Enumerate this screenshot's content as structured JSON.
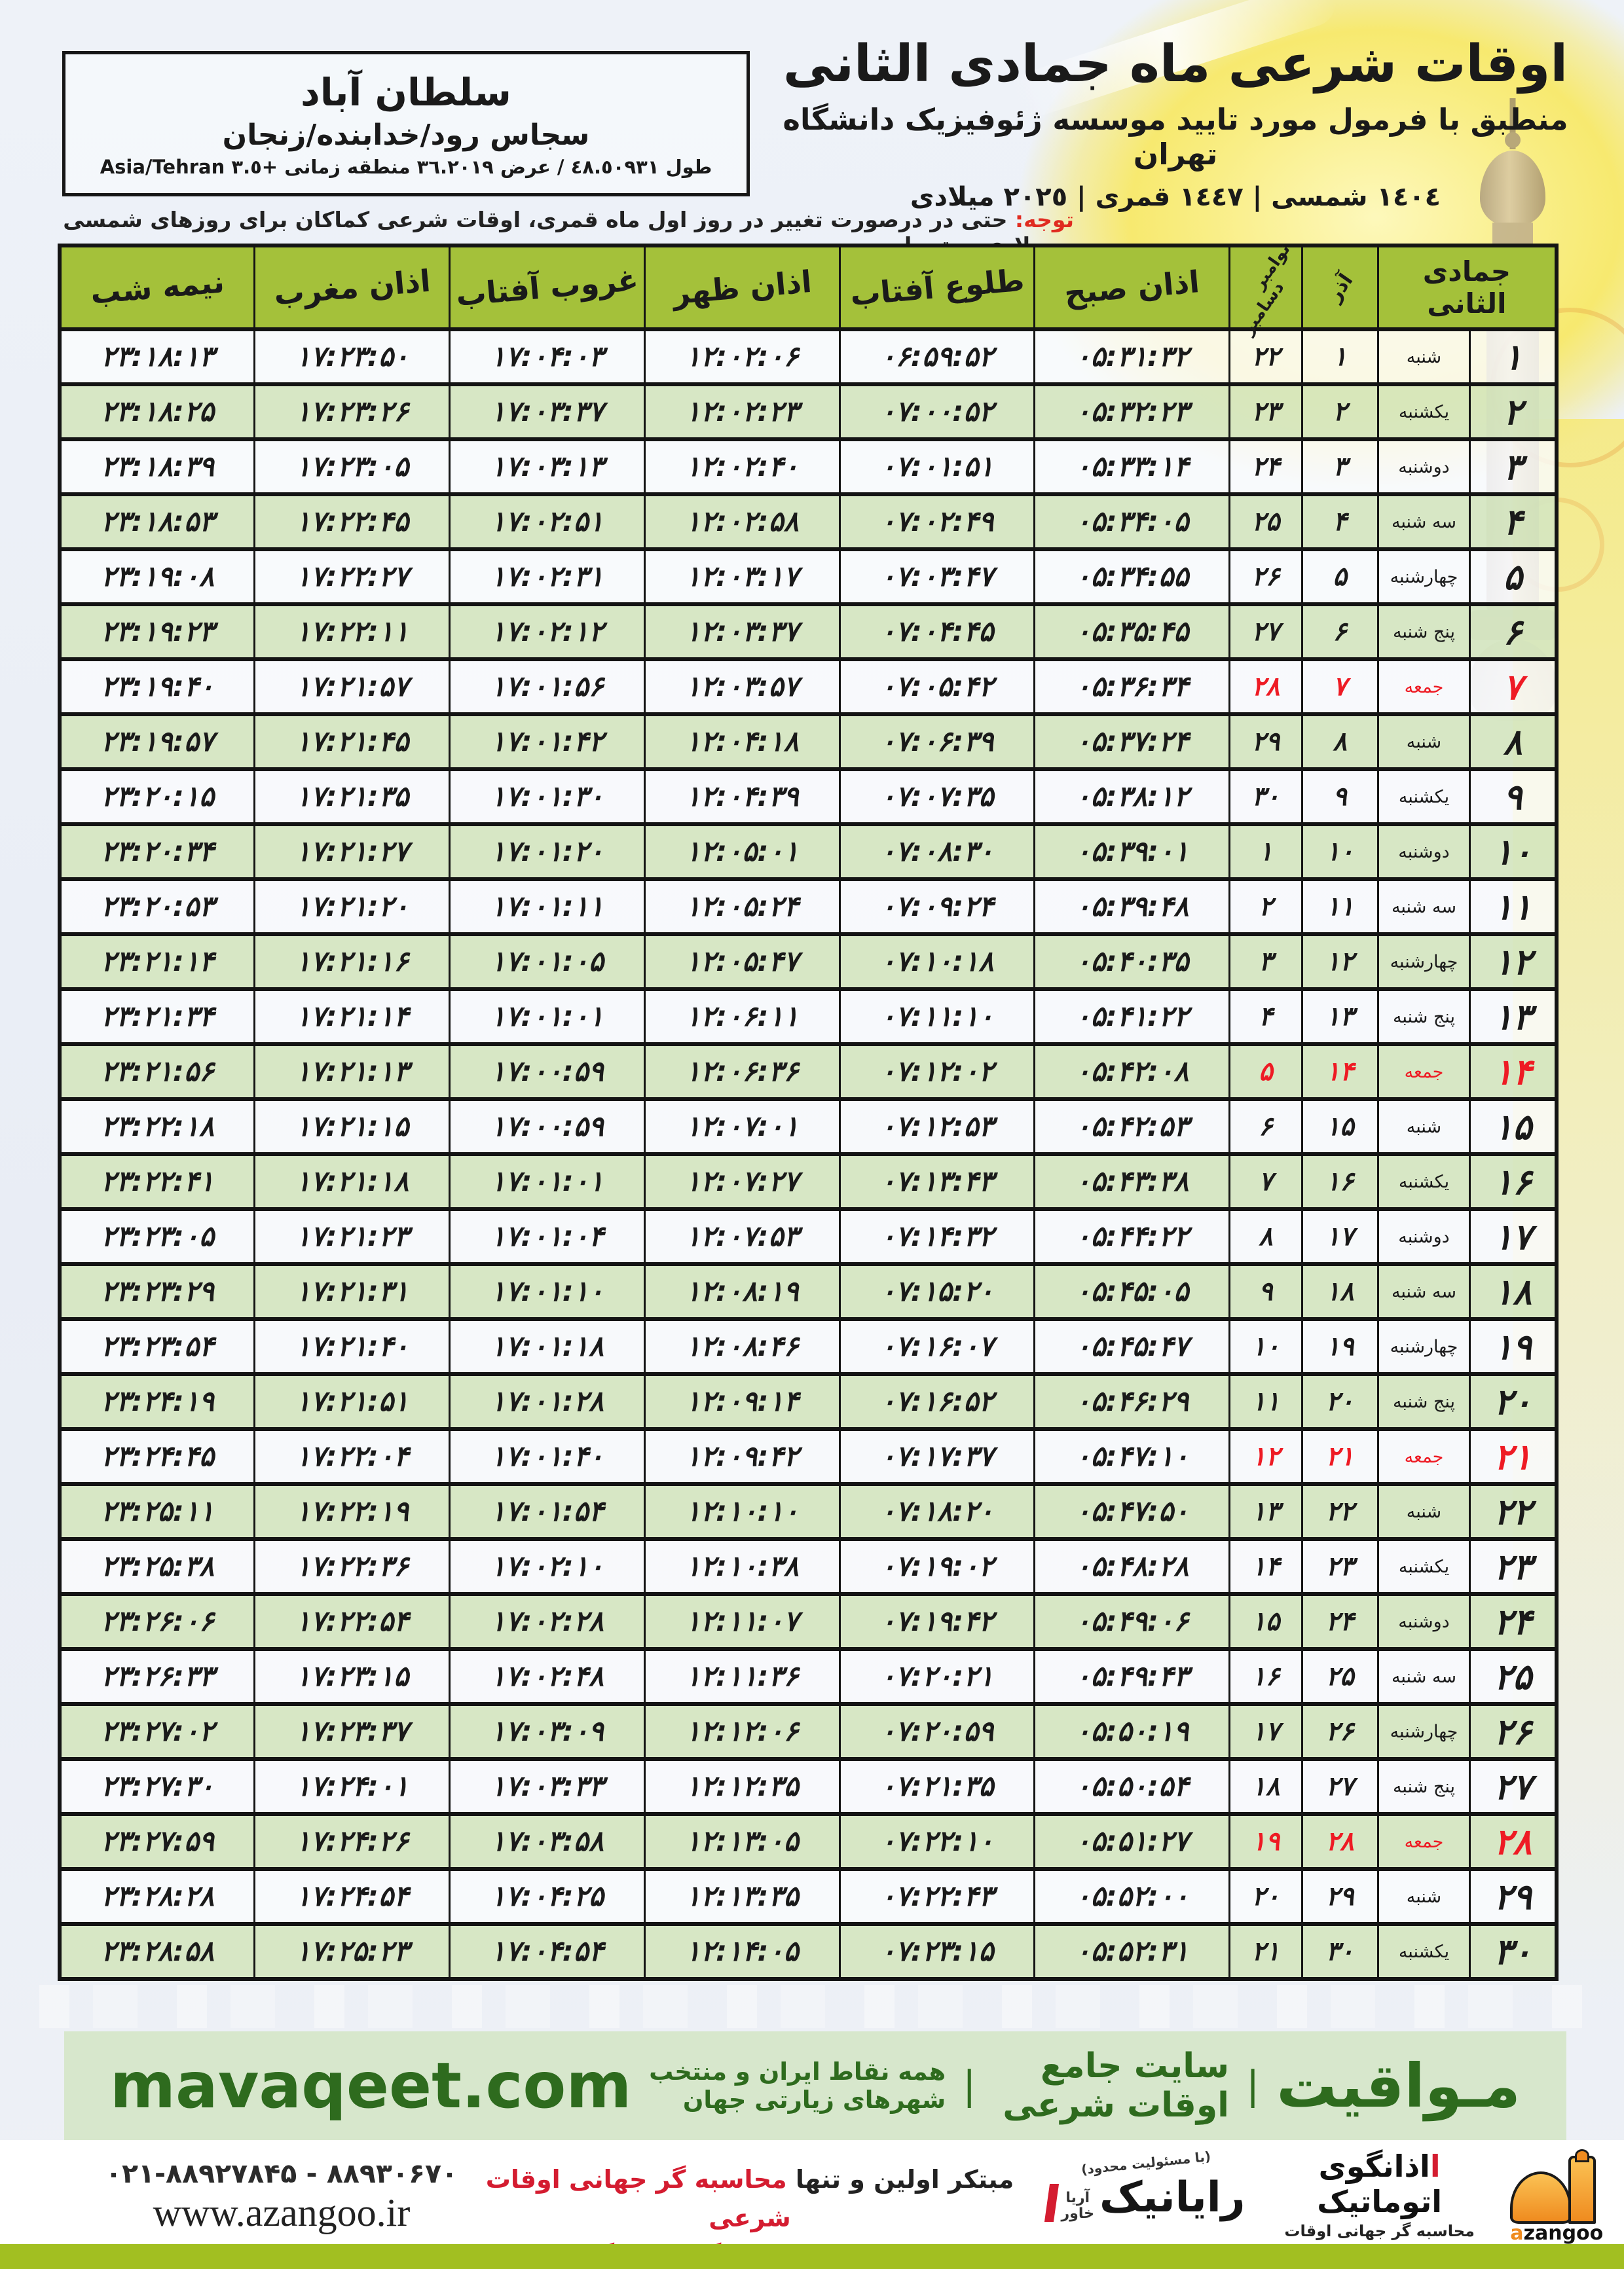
{
  "location_box": {
    "city": "سلطان آباد",
    "region": "سجاس رود/خدابنده/زنجان",
    "coords": "طول ٤٨.٥٠٩٣١ / عرض ٣٦.٢٠١٩ منطقه زمانی +٣.٥ Asia/Tehran"
  },
  "title_block": {
    "title": "اوقات شرعی ماه جمادی الثانی",
    "subtitle": "منطبق با فرمول مورد تایید موسسه ژئوفیزیک دانشگاه تهران",
    "years": "١٤٠٤ شمسی | ١٤٤٧ قمری | ٢٠٢٥ میلادی"
  },
  "notice": {
    "label": "توجه:",
    "text": " حتی در درصورت تغییر در روز اول ماه قمری، اوقات شرعی کماکان برای روزهای شمسی و میلادی معتبر است."
  },
  "table": {
    "col_headers": {
      "month_group": "جمادی الثانی",
      "azar": "آذر",
      "november": "نوامبر",
      "december": "دسامبر",
      "fajr": "اذان صبح",
      "sunrise": "طلوع آفتاب",
      "dhuhr": "اذان ظهر",
      "sunset": "غروب آفتاب",
      "maghrib": "اذان مغرب",
      "midnight": "نیمه شب"
    },
    "rows": [
      {
        "day": "۱",
        "weekday": "شنبه",
        "azar": "۱",
        "greg": "۲۲",
        "fajr": "۰۵:۳۱:۳۲",
        "sunrise": "۰۶:۵۹:۵۲",
        "dhuhr": "۱۲:۰۲:۰۶",
        "sunset": "۱۷:۰۴:۰۳",
        "maghrib": "۱۷:۲۳:۵۰",
        "midnight": "۲۳:۱۸:۱۳",
        "friday": false
      },
      {
        "day": "۲",
        "weekday": "یکشنبه",
        "azar": "۲",
        "greg": "۲۳",
        "fajr": "۰۵:۳۲:۲۳",
        "sunrise": "۰۷:۰۰:۵۲",
        "dhuhr": "۱۲:۰۲:۲۳",
        "sunset": "۱۷:۰۳:۳۷",
        "maghrib": "۱۷:۲۳:۲۶",
        "midnight": "۲۳:۱۸:۲۵",
        "friday": false
      },
      {
        "day": "۳",
        "weekday": "دوشنبه",
        "azar": "۳",
        "greg": "۲۴",
        "fajr": "۰۵:۳۳:۱۴",
        "sunrise": "۰۷:۰۱:۵۱",
        "dhuhr": "۱۲:۰۲:۴۰",
        "sunset": "۱۷:۰۳:۱۳",
        "maghrib": "۱۷:۲۳:۰۵",
        "midnight": "۲۳:۱۸:۳۹",
        "friday": false
      },
      {
        "day": "۴",
        "weekday": "سه شنبه",
        "azar": "۴",
        "greg": "۲۵",
        "fajr": "۰۵:۳۴:۰۵",
        "sunrise": "۰۷:۰۲:۴۹",
        "dhuhr": "۱۲:۰۲:۵۸",
        "sunset": "۱۷:۰۲:۵۱",
        "maghrib": "۱۷:۲۲:۴۵",
        "midnight": "۲۳:۱۸:۵۳",
        "friday": false
      },
      {
        "day": "۵",
        "weekday": "چهارشنبه",
        "azar": "۵",
        "greg": "۲۶",
        "fajr": "۰۵:۳۴:۵۵",
        "sunrise": "۰۷:۰۳:۴۷",
        "dhuhr": "۱۲:۰۳:۱۷",
        "sunset": "۱۷:۰۲:۳۱",
        "maghrib": "۱۷:۲۲:۲۷",
        "midnight": "۲۳:۱۹:۰۸",
        "friday": false
      },
      {
        "day": "۶",
        "weekday": "پنج شنبه",
        "azar": "۶",
        "greg": "۲۷",
        "fajr": "۰۵:۳۵:۴۵",
        "sunrise": "۰۷:۰۴:۴۵",
        "dhuhr": "۱۲:۰۳:۳۷",
        "sunset": "۱۷:۰۲:۱۲",
        "maghrib": "۱۷:۲۲:۱۱",
        "midnight": "۲۳:۱۹:۲۳",
        "friday": false
      },
      {
        "day": "۷",
        "weekday": "جمعه",
        "azar": "۷",
        "greg": "۲۸",
        "fajr": "۰۵:۳۶:۳۴",
        "sunrise": "۰۷:۰۵:۴۲",
        "dhuhr": "۱۲:۰۳:۵۷",
        "sunset": "۱۷:۰۱:۵۶",
        "maghrib": "۱۷:۲۱:۵۷",
        "midnight": "۲۳:۱۹:۴۰",
        "friday": true
      },
      {
        "day": "۸",
        "weekday": "شنبه",
        "azar": "۸",
        "greg": "۲۹",
        "fajr": "۰۵:۳۷:۲۴",
        "sunrise": "۰۷:۰۶:۳۹",
        "dhuhr": "۱۲:۰۴:۱۸",
        "sunset": "۱۷:۰۱:۴۲",
        "maghrib": "۱۷:۲۱:۴۵",
        "midnight": "۲۳:۱۹:۵۷",
        "friday": false
      },
      {
        "day": "۹",
        "weekday": "یکشنبه",
        "azar": "۹",
        "greg": "۳۰",
        "fajr": "۰۵:۳۸:۱۲",
        "sunrise": "۰۷:۰۷:۳۵",
        "dhuhr": "۱۲:۰۴:۳۹",
        "sunset": "۱۷:۰۱:۳۰",
        "maghrib": "۱۷:۲۱:۳۵",
        "midnight": "۲۳:۲۰:۱۵",
        "friday": false
      },
      {
        "day": "۱۰",
        "weekday": "دوشنبه",
        "azar": "۱۰",
        "greg": "۱",
        "fajr": "۰۵:۳۹:۰۱",
        "sunrise": "۰۷:۰۸:۳۰",
        "dhuhr": "۱۲:۰۵:۰۱",
        "sunset": "۱۷:۰۱:۲۰",
        "maghrib": "۱۷:۲۱:۲۷",
        "midnight": "۲۳:۲۰:۳۴",
        "friday": false
      },
      {
        "day": "۱۱",
        "weekday": "سه شنبه",
        "azar": "۱۱",
        "greg": "۲",
        "fajr": "۰۵:۳۹:۴۸",
        "sunrise": "۰۷:۰۹:۲۴",
        "dhuhr": "۱۲:۰۵:۲۴",
        "sunset": "۱۷:۰۱:۱۱",
        "maghrib": "۱۷:۲۱:۲۰",
        "midnight": "۲۳:۲۰:۵۳",
        "friday": false
      },
      {
        "day": "۱۲",
        "weekday": "چهارشنبه",
        "azar": "۱۲",
        "greg": "۳",
        "fajr": "۰۵:۴۰:۳۵",
        "sunrise": "۰۷:۱۰:۱۸",
        "dhuhr": "۱۲:۰۵:۴۷",
        "sunset": "۱۷:۰۱:۰۵",
        "maghrib": "۱۷:۲۱:۱۶",
        "midnight": "۲۳:۲۱:۱۴",
        "friday": false
      },
      {
        "day": "۱۳",
        "weekday": "پنج شنبه",
        "azar": "۱۳",
        "greg": "۴",
        "fajr": "۰۵:۴۱:۲۲",
        "sunrise": "۰۷:۱۱:۱۰",
        "dhuhr": "۱۲:۰۶:۱۱",
        "sunset": "۱۷:۰۱:۰۱",
        "maghrib": "۱۷:۲۱:۱۴",
        "midnight": "۲۳:۲۱:۳۴",
        "friday": false
      },
      {
        "day": "۱۴",
        "weekday": "جمعه",
        "azar": "۱۴",
        "greg": "۵",
        "fajr": "۰۵:۴۲:۰۸",
        "sunrise": "۰۷:۱۲:۰۲",
        "dhuhr": "۱۲:۰۶:۳۶",
        "sunset": "۱۷:۰۰:۵۹",
        "maghrib": "۱۷:۲۱:۱۳",
        "midnight": "۲۳:۲۱:۵۶",
        "friday": true
      },
      {
        "day": "۱۵",
        "weekday": "شنبه",
        "azar": "۱۵",
        "greg": "۶",
        "fajr": "۰۵:۴۲:۵۳",
        "sunrise": "۰۷:۱۲:۵۳",
        "dhuhr": "۱۲:۰۷:۰۱",
        "sunset": "۱۷:۰۰:۵۹",
        "maghrib": "۱۷:۲۱:۱۵",
        "midnight": "۲۳:۲۲:۱۸",
        "friday": false
      },
      {
        "day": "۱۶",
        "weekday": "یکشنبه",
        "azar": "۱۶",
        "greg": "۷",
        "fajr": "۰۵:۴۳:۳۸",
        "sunrise": "۰۷:۱۳:۴۳",
        "dhuhr": "۱۲:۰۷:۲۷",
        "sunset": "۱۷:۰۱:۰۱",
        "maghrib": "۱۷:۲۱:۱۸",
        "midnight": "۲۳:۲۲:۴۱",
        "friday": false
      },
      {
        "day": "۱۷",
        "weekday": "دوشنبه",
        "azar": "۱۷",
        "greg": "۸",
        "fajr": "۰۵:۴۴:۲۲",
        "sunrise": "۰۷:۱۴:۳۲",
        "dhuhr": "۱۲:۰۷:۵۳",
        "sunset": "۱۷:۰۱:۰۴",
        "maghrib": "۱۷:۲۱:۲۳",
        "midnight": "۲۳:۲۳:۰۵",
        "friday": false
      },
      {
        "day": "۱۸",
        "weekday": "سه شنبه",
        "azar": "۱۸",
        "greg": "۹",
        "fajr": "۰۵:۴۵:۰۵",
        "sunrise": "۰۷:۱۵:۲۰",
        "dhuhr": "۱۲:۰۸:۱۹",
        "sunset": "۱۷:۰۱:۱۰",
        "maghrib": "۱۷:۲۱:۳۱",
        "midnight": "۲۳:۲۳:۲۹",
        "friday": false
      },
      {
        "day": "۱۹",
        "weekday": "چهارشنبه",
        "azar": "۱۹",
        "greg": "۱۰",
        "fajr": "۰۵:۴۵:۴۷",
        "sunrise": "۰۷:۱۶:۰۷",
        "dhuhr": "۱۲:۰۸:۴۶",
        "sunset": "۱۷:۰۱:۱۸",
        "maghrib": "۱۷:۲۱:۴۰",
        "midnight": "۲۳:۲۳:۵۴",
        "friday": false
      },
      {
        "day": "۲۰",
        "weekday": "پنج شنبه",
        "azar": "۲۰",
        "greg": "۱۱",
        "fajr": "۰۵:۴۶:۲۹",
        "sunrise": "۰۷:۱۶:۵۲",
        "dhuhr": "۱۲:۰۹:۱۴",
        "sunset": "۱۷:۰۱:۲۸",
        "maghrib": "۱۷:۲۱:۵۱",
        "midnight": "۲۳:۲۴:۱۹",
        "friday": false
      },
      {
        "day": "۲۱",
        "weekday": "جمعه",
        "azar": "۲۱",
        "greg": "۱۲",
        "fajr": "۰۵:۴۷:۱۰",
        "sunrise": "۰۷:۱۷:۳۷",
        "dhuhr": "۱۲:۰۹:۴۲",
        "sunset": "۱۷:۰۱:۴۰",
        "maghrib": "۱۷:۲۲:۰۴",
        "midnight": "۲۳:۲۴:۴۵",
        "friday": true
      },
      {
        "day": "۲۲",
        "weekday": "شنبه",
        "azar": "۲۲",
        "greg": "۱۳",
        "fajr": "۰۵:۴۷:۵۰",
        "sunrise": "۰۷:۱۸:۲۰",
        "dhuhr": "۱۲:۱۰:۱۰",
        "sunset": "۱۷:۰۱:۵۴",
        "maghrib": "۱۷:۲۲:۱۹",
        "midnight": "۲۳:۲۵:۱۱",
        "friday": false
      },
      {
        "day": "۲۳",
        "weekday": "یکشنبه",
        "azar": "۲۳",
        "greg": "۱۴",
        "fajr": "۰۵:۴۸:۲۸",
        "sunrise": "۰۷:۱۹:۰۲",
        "dhuhr": "۱۲:۱۰:۳۸",
        "sunset": "۱۷:۰۲:۱۰",
        "maghrib": "۱۷:۲۲:۳۶",
        "midnight": "۲۳:۲۵:۳۸",
        "friday": false
      },
      {
        "day": "۲۴",
        "weekday": "دوشنبه",
        "azar": "۲۴",
        "greg": "۱۵",
        "fajr": "۰۵:۴۹:۰۶",
        "sunrise": "۰۷:۱۹:۴۲",
        "dhuhr": "۱۲:۱۱:۰۷",
        "sunset": "۱۷:۰۲:۲۸",
        "maghrib": "۱۷:۲۲:۵۴",
        "midnight": "۲۳:۲۶:۰۶",
        "friday": false
      },
      {
        "day": "۲۵",
        "weekday": "سه شنبه",
        "azar": "۲۵",
        "greg": "۱۶",
        "fajr": "۰۵:۴۹:۴۳",
        "sunrise": "۰۷:۲۰:۲۱",
        "dhuhr": "۱۲:۱۱:۳۶",
        "sunset": "۱۷:۰۲:۴۸",
        "maghrib": "۱۷:۲۳:۱۵",
        "midnight": "۲۳:۲۶:۳۳",
        "friday": false
      },
      {
        "day": "۲۶",
        "weekday": "چهارشنبه",
        "azar": "۲۶",
        "greg": "۱۷",
        "fajr": "۰۵:۵۰:۱۹",
        "sunrise": "۰۷:۲۰:۵۹",
        "dhuhr": "۱۲:۱۲:۰۶",
        "sunset": "۱۷:۰۳:۰۹",
        "maghrib": "۱۷:۲۳:۳۷",
        "midnight": "۲۳:۲۷:۰۲",
        "friday": false
      },
      {
        "day": "۲۷",
        "weekday": "پنج شنبه",
        "azar": "۲۷",
        "greg": "۱۸",
        "fajr": "۰۵:۵۰:۵۴",
        "sunrise": "۰۷:۲۱:۳۵",
        "dhuhr": "۱۲:۱۲:۳۵",
        "sunset": "۱۷:۰۳:۳۳",
        "maghrib": "۱۷:۲۴:۰۱",
        "midnight": "۲۳:۲۷:۳۰",
        "friday": false
      },
      {
        "day": "۲۸",
        "weekday": "جمعه",
        "azar": "۲۸",
        "greg": "۱۹",
        "fajr": "۰۵:۵۱:۲۷",
        "sunrise": "۰۷:۲۲:۱۰",
        "dhuhr": "۱۲:۱۳:۰۵",
        "sunset": "۱۷:۰۳:۵۸",
        "maghrib": "۱۷:۲۴:۲۶",
        "midnight": "۲۳:۲۷:۵۹",
        "friday": true
      },
      {
        "day": "۲۹",
        "weekday": "شنبه",
        "azar": "۲۹",
        "greg": "۲۰",
        "fajr": "۰۵:۵۲:۰۰",
        "sunrise": "۰۷:۲۲:۴۳",
        "dhuhr": "۱۲:۱۳:۳۵",
        "sunset": "۱۷:۰۴:۲۵",
        "maghrib": "۱۷:۲۴:۵۴",
        "midnight": "۲۳:۲۸:۲۸",
        "friday": false
      },
      {
        "day": "۳۰",
        "weekday": "یکشنبه",
        "azar": "۳۰",
        "greg": "۲۱",
        "fajr": "۰۵:۵۲:۳۱",
        "sunrise": "۰۷:۲۳:۱۵",
        "dhuhr": "۱۲:۱۴:۰۵",
        "sunset": "۱۷:۰۴:۵۴",
        "maghrib": "۱۷:۲۵:۲۳",
        "midnight": "۲۳:۲۸:۵۸",
        "friday": false
      }
    ]
  },
  "footer_bar": {
    "brand": "مـواقیت",
    "sep": "|",
    "tagline1": "سایت جامع اوقات شرعی",
    "tagline2": "همه نقاط ایران و منتخب شهرهای زیارتی جهان",
    "url": "mavaqeet.com"
  },
  "bottom": {
    "phone": "۰۲۱-۸۸۹۲۷۸۴۵ - ۸۸۹۳۰۶۷۰",
    "website": "www.azangoo.ir",
    "promo_line1_black": "مبتکر اولین و تنها ",
    "promo_line1_red": "محاسبه گر جهانی اوقات شرعی",
    "promo_line2_black": "و تولید کننده انواع ",
    "promo_line2_red": "دستگاه اذان گوی تمام خودکار ماهواره ای",
    "rayanik_name": "رایانیک",
    "rayanik_side1": "آریا",
    "rayanik_side2": "خاور",
    "rayanik_note": "(با مسئولیت محدود)",
    "azangoo_name": "اذانگوی اتوماتیک",
    "azangoo_sub": "محاسبه گر جهانی اوقات شرعی",
    "azangoo_latin_a": "a",
    "azangoo_latin_rest": "zangoo"
  },
  "colors": {
    "friday_red": "#ee1b24",
    "notice_red": "#e02b20",
    "header_green": "#a4c13a",
    "row_green": "#d5e6c0",
    "footer_bg": "#d7e7cc",
    "footer_text": "#2e6b1e",
    "lime_bar": "#a2bf21",
    "promo_red": "#d41c30",
    "logo_orange": "#ef8b1f"
  }
}
